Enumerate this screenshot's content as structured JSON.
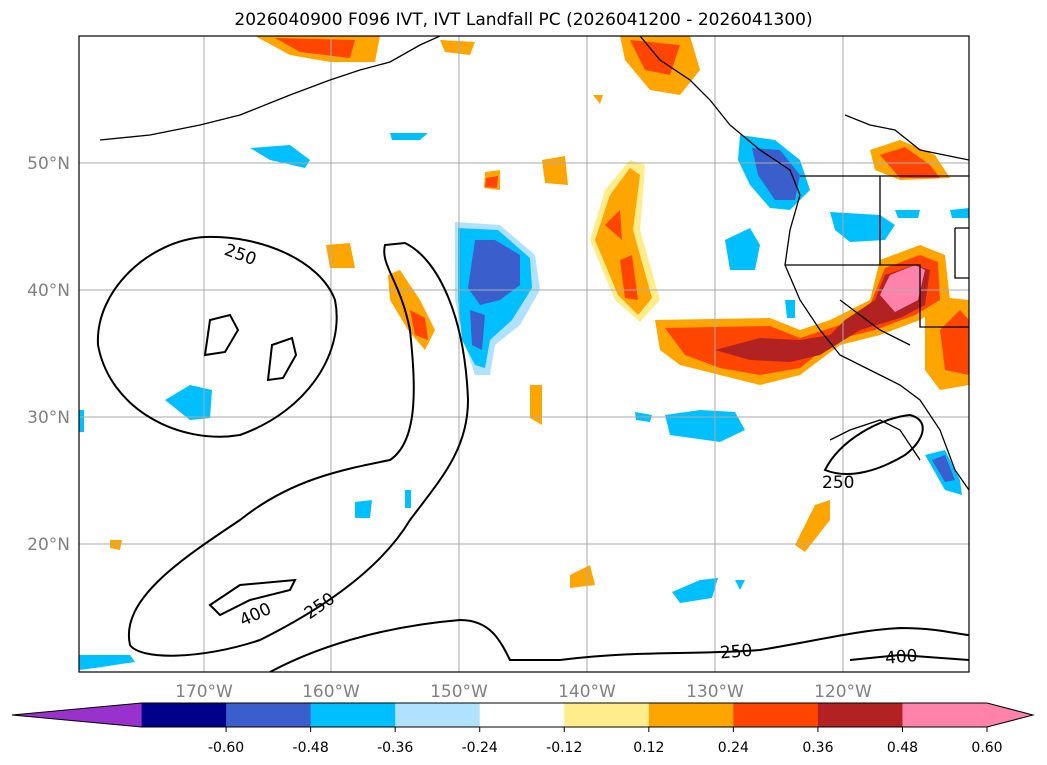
{
  "title": "2026040900 F096 IVT, IVT Landfall PC (2026041200 - 2026041300)",
  "map": {
    "lon_labels": [
      "170°W",
      "160°W",
      "150°W",
      "140°W",
      "130°W",
      "120°W"
    ],
    "lat_labels": [
      "50°N",
      "40°N",
      "30°N",
      "20°N"
    ],
    "contour_labels": [
      "250",
      "250",
      "400",
      "250",
      "250",
      "250",
      "400"
    ]
  },
  "colorbar": {
    "ticks": [
      "-0.60",
      "-0.48",
      "-0.36",
      "-0.24",
      "-0.12",
      "0.12",
      "0.24",
      "0.36",
      "0.48",
      "0.60"
    ],
    "colors": [
      "#9932CC",
      "#00008B",
      "#3A5FCD",
      "#00BFFF",
      "#B0E2FF",
      "#FFFFFF",
      "#FFEC8B",
      "#FFA500",
      "#FF4500",
      "#B22222",
      "#FF82AB"
    ]
  }
}
